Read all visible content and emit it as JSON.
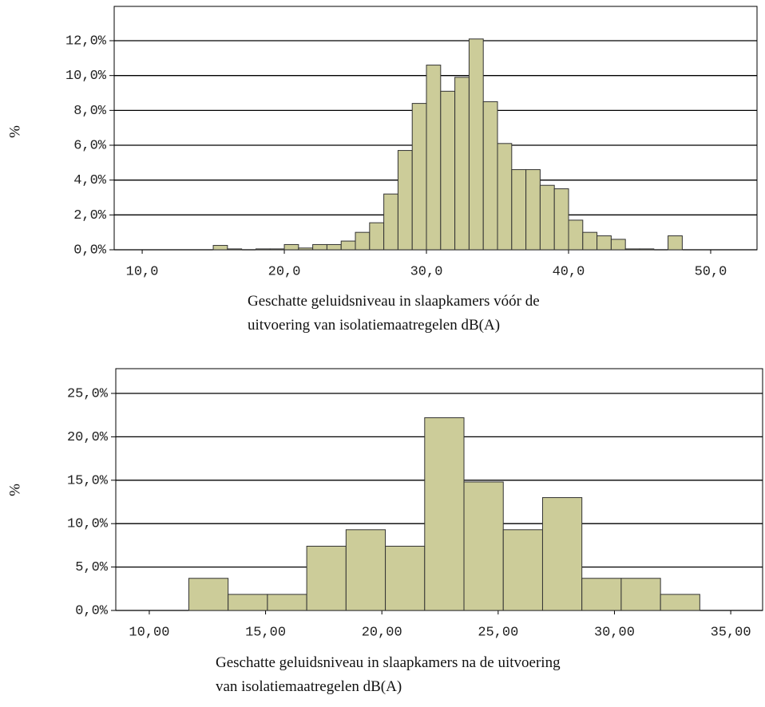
{
  "chart_data": [
    {
      "type": "histogram",
      "ylabel": "%",
      "xlabel": [
        "Geschatte geluidsniveau in slaapkamers vóór de",
        "uitvoering van isolatiemaatregelen dB(A)"
      ],
      "bins": [
        15,
        16,
        17,
        18,
        19,
        20,
        21,
        22,
        23,
        24,
        25,
        26,
        27,
        28,
        29,
        30,
        31,
        32,
        33,
        34,
        35,
        36,
        37,
        38,
        39,
        40,
        41,
        42,
        43,
        44,
        45,
        46,
        47,
        48
      ],
      "values": [
        0.25,
        0.05,
        0,
        0.05,
        0.05,
        0.3,
        0.1,
        0.3,
        0.3,
        0.5,
        1.0,
        1.55,
        3.2,
        5.7,
        8.4,
        10.6,
        9.1,
        9.9,
        12.1,
        8.5,
        6.1,
        4.6,
        4.6,
        3.7,
        3.5,
        1.7,
        1.0,
        0.8,
        0.6,
        0.05,
        0.05,
        0,
        0.8
      ],
      "color": "#cccc99",
      "grid": true,
      "xlim": [
        8.03,
        53.26
      ],
      "ylim": [
        0,
        13.97
      ],
      "xticks": [
        {
          "value": 10,
          "label": "10,0"
        },
        {
          "value": 20,
          "label": "20,0"
        },
        {
          "value": 30,
          "label": "30,0"
        },
        {
          "value": 40,
          "label": "40,0"
        },
        {
          "value": 50,
          "label": "50,0"
        }
      ],
      "yticks": [
        {
          "value": 0,
          "label": "0,0%"
        },
        {
          "value": 2,
          "label": "2,0%"
        },
        {
          "value": 4,
          "label": "4,0%"
        },
        {
          "value": 6,
          "label": "6,0%"
        },
        {
          "value": 8,
          "label": "8,0%"
        },
        {
          "value": 10,
          "label": "10,0%"
        },
        {
          "value": 12,
          "label": "12,0%"
        }
      ]
    },
    {
      "type": "histogram",
      "ylabel": "%",
      "xlabel": [
        "Geschatte geluidsniveau in slaapkamers na de uitvoering",
        "van isolatiemaatregelen dB(A)"
      ],
      "bins": [
        11.7,
        13.39,
        15.08,
        16.77,
        18.46,
        20.15,
        21.84,
        23.53,
        25.22,
        26.91,
        28.6,
        30.29,
        31.98,
        33.67
      ],
      "values": [
        3.7,
        1.85,
        1.85,
        7.4,
        9.3,
        7.4,
        22.2,
        14.8,
        9.3,
        13.0,
        3.7,
        3.7,
        1.85
      ],
      "color": "#cccc99",
      "grid": true,
      "xlim": [
        8.56,
        36.37
      ],
      "ylim": [
        0,
        27.85
      ],
      "xticks": [
        {
          "value": 10,
          "label": "10,00"
        },
        {
          "value": 15,
          "label": "15,00"
        },
        {
          "value": 20,
          "label": "20,00"
        },
        {
          "value": 25,
          "label": "25,00"
        },
        {
          "value": 30,
          "label": "30,00"
        },
        {
          "value": 35,
          "label": "35,00"
        }
      ],
      "yticks": [
        {
          "value": 0,
          "label": "0,0%"
        },
        {
          "value": 5,
          "label": "5,0%"
        },
        {
          "value": 10,
          "label": "10,0%"
        },
        {
          "value": 15,
          "label": "15,0%"
        },
        {
          "value": 20,
          "label": "20,0%"
        },
        {
          "value": 25,
          "label": "25,0%"
        }
      ]
    }
  ]
}
